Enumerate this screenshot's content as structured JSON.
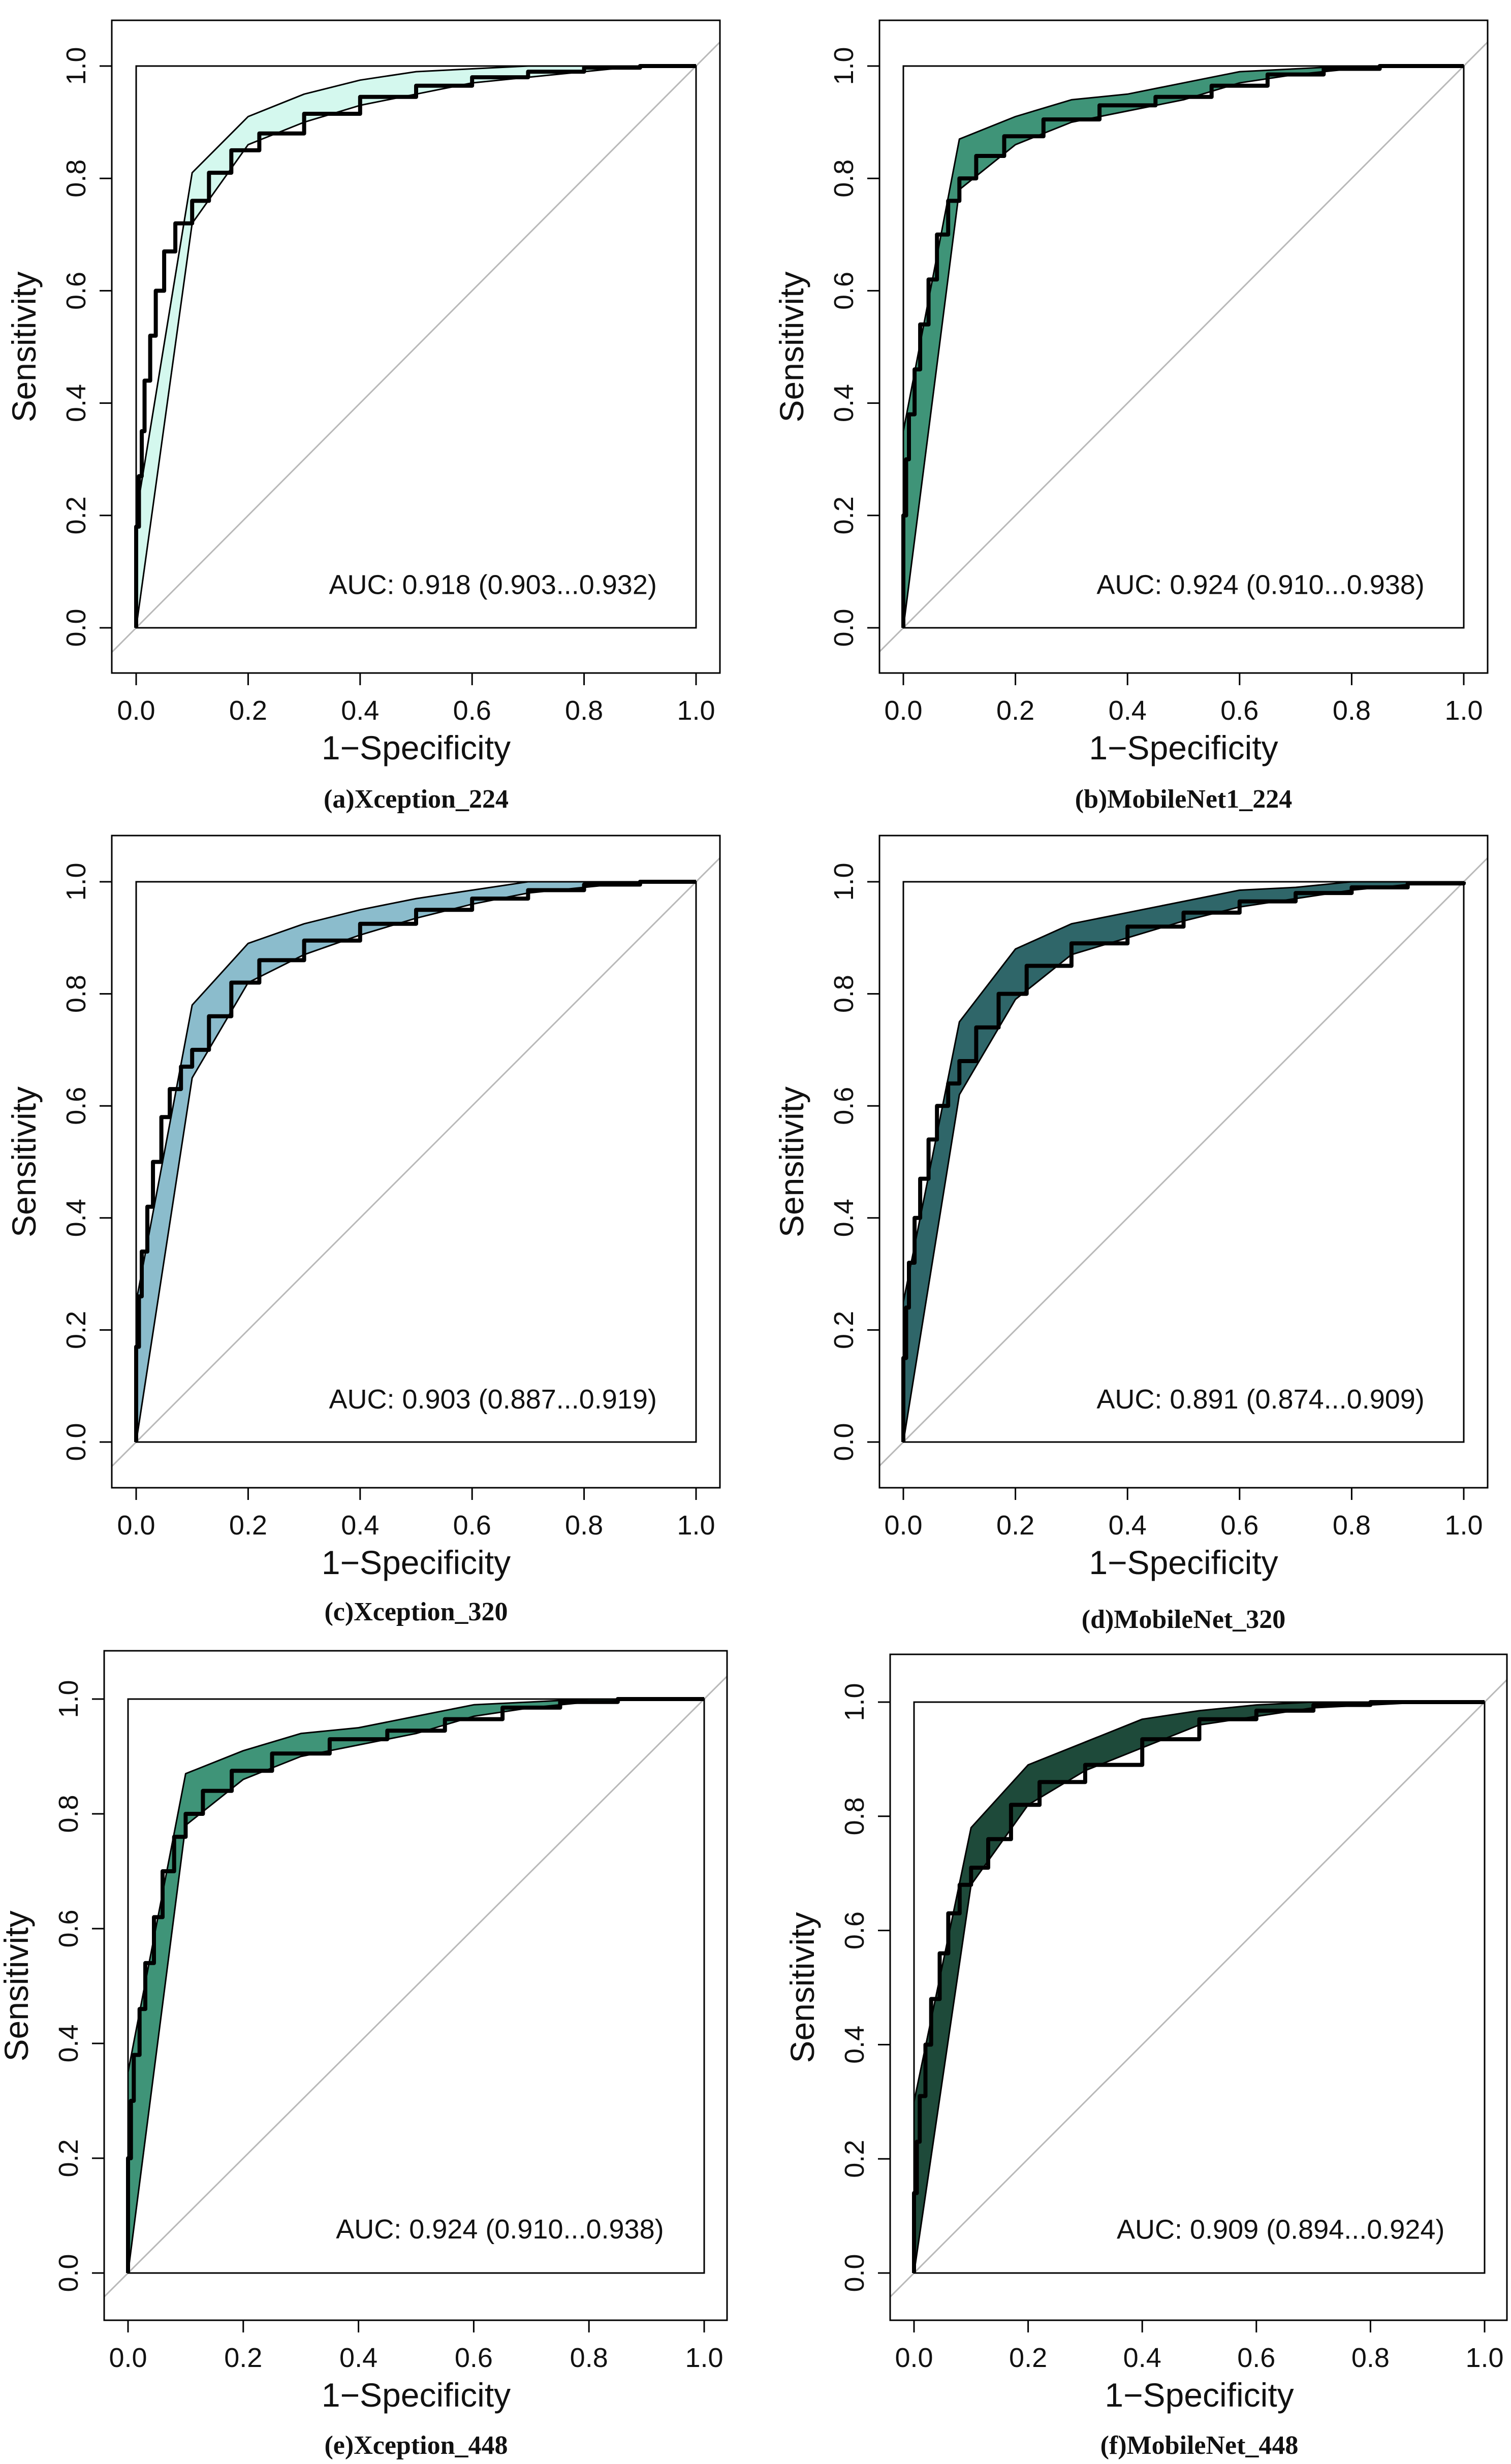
{
  "chart_data": [
    {
      "type": "line",
      "caption": "(a)Xception_224",
      "xlabel": "1−Specificity",
      "ylabel": "Sensitivity",
      "xlim": [
        0,
        1
      ],
      "ylim": [
        0,
        1
      ],
      "xticks": [
        "0.0",
        "0.2",
        "0.4",
        "0.6",
        "0.8",
        "1.0"
      ],
      "yticks": [
        "0.0",
        "0.2",
        "0.4",
        "0.6",
        "0.8",
        "1.0"
      ],
      "annotation": "AUC: 0.918 (0.903...0.932)",
      "band_color": "#d4f8ee",
      "upper": [
        [
          0,
          0.2
        ],
        [
          0.1,
          0.81
        ],
        [
          0.2,
          0.91
        ],
        [
          0.3,
          0.95
        ],
        [
          0.4,
          0.975
        ],
        [
          0.5,
          0.99
        ],
        [
          0.6,
          0.995
        ],
        [
          0.7,
          1
        ],
        [
          1,
          1
        ]
      ],
      "lower": [
        [
          0,
          0
        ],
        [
          0.1,
          0.72
        ],
        [
          0.2,
          0.86
        ],
        [
          0.3,
          0.9
        ],
        [
          0.4,
          0.93
        ],
        [
          0.5,
          0.95
        ],
        [
          0.6,
          0.97
        ],
        [
          0.7,
          0.98
        ],
        [
          0.8,
          0.99
        ],
        [
          0.9,
          1
        ],
        [
          1,
          1
        ]
      ],
      "roc": [
        [
          0,
          0
        ],
        [
          0,
          0.18
        ],
        [
          0.005,
          0.27
        ],
        [
          0.01,
          0.35
        ],
        [
          0.015,
          0.44
        ],
        [
          0.025,
          0.52
        ],
        [
          0.035,
          0.6
        ],
        [
          0.05,
          0.67
        ],
        [
          0.07,
          0.72
        ],
        [
          0.1,
          0.76
        ],
        [
          0.13,
          0.81
        ],
        [
          0.17,
          0.85
        ],
        [
          0.22,
          0.88
        ],
        [
          0.3,
          0.915
        ],
        [
          0.4,
          0.945
        ],
        [
          0.5,
          0.965
        ],
        [
          0.6,
          0.98
        ],
        [
          0.7,
          0.99
        ],
        [
          0.8,
          0.997
        ],
        [
          0.9,
          1
        ],
        [
          1,
          1
        ]
      ]
    },
    {
      "type": "line",
      "caption": "(b)MobileNet1_224",
      "xlabel": "1−Specificity",
      "ylabel": "Sensitivity",
      "xlim": [
        0,
        1
      ],
      "ylim": [
        0,
        1
      ],
      "xticks": [
        "0.0",
        "0.2",
        "0.4",
        "0.6",
        "0.8",
        "1.0"
      ],
      "yticks": [
        "0.0",
        "0.2",
        "0.4",
        "0.6",
        "0.8",
        "1.0"
      ],
      "annotation": "AUC: 0.924 (0.910...0.938)",
      "band_color": "#3f9478",
      "upper": [
        [
          0,
          0.35
        ],
        [
          0.1,
          0.87
        ],
        [
          0.2,
          0.91
        ],
        [
          0.3,
          0.94
        ],
        [
          0.4,
          0.95
        ],
        [
          0.5,
          0.97
        ],
        [
          0.6,
          0.99
        ],
        [
          0.7,
          0.995
        ],
        [
          0.8,
          1
        ],
        [
          1,
          1
        ]
      ],
      "lower": [
        [
          0,
          0
        ],
        [
          0.1,
          0.78
        ],
        [
          0.2,
          0.86
        ],
        [
          0.3,
          0.9
        ],
        [
          0.4,
          0.92
        ],
        [
          0.5,
          0.94
        ],
        [
          0.6,
          0.97
        ],
        [
          0.7,
          0.985
        ],
        [
          0.8,
          0.995
        ],
        [
          0.9,
          1
        ],
        [
          1,
          1
        ]
      ],
      "roc": [
        [
          0,
          0
        ],
        [
          0,
          0.2
        ],
        [
          0.005,
          0.3
        ],
        [
          0.01,
          0.38
        ],
        [
          0.02,
          0.46
        ],
        [
          0.03,
          0.54
        ],
        [
          0.045,
          0.62
        ],
        [
          0.06,
          0.7
        ],
        [
          0.08,
          0.76
        ],
        [
          0.1,
          0.8
        ],
        [
          0.13,
          0.84
        ],
        [
          0.18,
          0.875
        ],
        [
          0.25,
          0.905
        ],
        [
          0.35,
          0.93
        ],
        [
          0.45,
          0.945
        ],
        [
          0.55,
          0.965
        ],
        [
          0.65,
          0.985
        ],
        [
          0.75,
          0.995
        ],
        [
          0.85,
          1
        ],
        [
          1,
          1
        ]
      ]
    },
    {
      "type": "line",
      "caption": "(c)Xception_320",
      "xlabel": "1−Specificity",
      "ylabel": "Sensitivity",
      "xlim": [
        0,
        1
      ],
      "ylim": [
        0,
        1
      ],
      "xticks": [
        "0.0",
        "0.2",
        "0.4",
        "0.6",
        "0.8",
        "1.0"
      ],
      "yticks": [
        "0.0",
        "0.2",
        "0.4",
        "0.6",
        "0.8",
        "1.0"
      ],
      "annotation": "AUC: 0.903 (0.887...0.919)",
      "band_color": "#8bbccc",
      "upper": [
        [
          0,
          0.25
        ],
        [
          0.1,
          0.78
        ],
        [
          0.2,
          0.89
        ],
        [
          0.3,
          0.925
        ],
        [
          0.4,
          0.95
        ],
        [
          0.5,
          0.97
        ],
        [
          0.6,
          0.985
        ],
        [
          0.7,
          1
        ],
        [
          1,
          1
        ]
      ],
      "lower": [
        [
          0,
          0
        ],
        [
          0.1,
          0.65
        ],
        [
          0.2,
          0.82
        ],
        [
          0.3,
          0.87
        ],
        [
          0.4,
          0.905
        ],
        [
          0.5,
          0.935
        ],
        [
          0.6,
          0.96
        ],
        [
          0.7,
          0.98
        ],
        [
          0.8,
          0.99
        ],
        [
          0.9,
          1
        ],
        [
          1,
          1
        ]
      ],
      "roc": [
        [
          0,
          0
        ],
        [
          0,
          0.17
        ],
        [
          0.005,
          0.26
        ],
        [
          0.01,
          0.34
        ],
        [
          0.02,
          0.42
        ],
        [
          0.03,
          0.5
        ],
        [
          0.045,
          0.58
        ],
        [
          0.06,
          0.63
        ],
        [
          0.08,
          0.67
        ],
        [
          0.1,
          0.7
        ],
        [
          0.13,
          0.76
        ],
        [
          0.17,
          0.82
        ],
        [
          0.22,
          0.86
        ],
        [
          0.3,
          0.895
        ],
        [
          0.4,
          0.925
        ],
        [
          0.5,
          0.95
        ],
        [
          0.6,
          0.97
        ],
        [
          0.7,
          0.985
        ],
        [
          0.8,
          0.995
        ],
        [
          0.9,
          1
        ],
        [
          1,
          1
        ]
      ]
    },
    {
      "type": "line",
      "caption": "(d)MobileNet_320",
      "xlabel": "1−Specificity",
      "ylabel": "Sensitivity",
      "xlim": [
        0,
        1
      ],
      "ylim": [
        0,
        1
      ],
      "xticks": [
        "0.0",
        "0.2",
        "0.4",
        "0.6",
        "0.8",
        "1.0"
      ],
      "yticks": [
        "0.0",
        "0.2",
        "0.4",
        "0.6",
        "0.8",
        "1.0"
      ],
      "annotation": "AUC: 0.891 (0.874...0.909)",
      "band_color": "#2f6669",
      "upper": [
        [
          0,
          0.25
        ],
        [
          0.1,
          0.75
        ],
        [
          0.2,
          0.88
        ],
        [
          0.3,
          0.925
        ],
        [
          0.4,
          0.945
        ],
        [
          0.5,
          0.965
        ],
        [
          0.6,
          0.985
        ],
        [
          0.7,
          0.99
        ],
        [
          0.8,
          1
        ],
        [
          1,
          1
        ]
      ],
      "lower": [
        [
          0,
          0
        ],
        [
          0.1,
          0.62
        ],
        [
          0.2,
          0.79
        ],
        [
          0.3,
          0.87
        ],
        [
          0.4,
          0.9
        ],
        [
          0.5,
          0.93
        ],
        [
          0.6,
          0.955
        ],
        [
          0.7,
          0.97
        ],
        [
          0.8,
          0.985
        ],
        [
          0.9,
          0.995
        ],
        [
          1,
          1
        ]
      ],
      "roc": [
        [
          0,
          0
        ],
        [
          0,
          0.15
        ],
        [
          0.005,
          0.24
        ],
        [
          0.01,
          0.32
        ],
        [
          0.02,
          0.4
        ],
        [
          0.03,
          0.47
        ],
        [
          0.045,
          0.54
        ],
        [
          0.06,
          0.6
        ],
        [
          0.08,
          0.64
        ],
        [
          0.1,
          0.68
        ],
        [
          0.13,
          0.74
        ],
        [
          0.17,
          0.8
        ],
        [
          0.22,
          0.85
        ],
        [
          0.3,
          0.89
        ],
        [
          0.4,
          0.92
        ],
        [
          0.5,
          0.945
        ],
        [
          0.6,
          0.965
        ],
        [
          0.7,
          0.98
        ],
        [
          0.8,
          0.99
        ],
        [
          0.9,
          0.997
        ],
        [
          1,
          1
        ]
      ]
    },
    {
      "type": "line",
      "caption": "(e)Xception_448",
      "xlabel": "1−Specificity",
      "ylabel": "Sensitivity",
      "xlim": [
        0,
        1
      ],
      "ylim": [
        0,
        1
      ],
      "xticks": [
        "0.0",
        "0.2",
        "0.4",
        "0.6",
        "0.8",
        "1.0"
      ],
      "yticks": [
        "0.0",
        "0.2",
        "0.4",
        "0.6",
        "0.8",
        "1.0"
      ],
      "annotation": "AUC: 0.924 (0.910...0.938)",
      "band_color": "#3f9478",
      "upper": [
        [
          0,
          0.35
        ],
        [
          0.1,
          0.87
        ],
        [
          0.2,
          0.91
        ],
        [
          0.3,
          0.94
        ],
        [
          0.4,
          0.95
        ],
        [
          0.5,
          0.97
        ],
        [
          0.6,
          0.99
        ],
        [
          0.7,
          0.995
        ],
        [
          0.8,
          1
        ],
        [
          1,
          1
        ]
      ],
      "lower": [
        [
          0,
          0
        ],
        [
          0.1,
          0.78
        ],
        [
          0.2,
          0.86
        ],
        [
          0.3,
          0.9
        ],
        [
          0.4,
          0.92
        ],
        [
          0.5,
          0.94
        ],
        [
          0.6,
          0.97
        ],
        [
          0.7,
          0.985
        ],
        [
          0.8,
          0.995
        ],
        [
          0.9,
          1
        ],
        [
          1,
          1
        ]
      ],
      "roc": [
        [
          0,
          0
        ],
        [
          0,
          0.2
        ],
        [
          0.005,
          0.3
        ],
        [
          0.01,
          0.38
        ],
        [
          0.02,
          0.46
        ],
        [
          0.03,
          0.54
        ],
        [
          0.045,
          0.62
        ],
        [
          0.06,
          0.7
        ],
        [
          0.08,
          0.76
        ],
        [
          0.1,
          0.8
        ],
        [
          0.13,
          0.84
        ],
        [
          0.18,
          0.875
        ],
        [
          0.25,
          0.905
        ],
        [
          0.35,
          0.93
        ],
        [
          0.45,
          0.945
        ],
        [
          0.55,
          0.965
        ],
        [
          0.65,
          0.985
        ],
        [
          0.75,
          0.995
        ],
        [
          0.85,
          1
        ],
        [
          1,
          1
        ]
      ]
    },
    {
      "type": "line",
      "caption": "(f)MobileNet_448",
      "xlabel": "1−Specificity",
      "ylabel": "Sensitivity",
      "xlim": [
        0,
        1
      ],
      "ylim": [
        0,
        1
      ],
      "xticks": [
        "0.0",
        "0.2",
        "0.4",
        "0.6",
        "0.8",
        "1.0"
      ],
      "yticks": [
        "0.0",
        "0.2",
        "0.4",
        "0.6",
        "0.8",
        "1.0"
      ],
      "annotation": "AUC: 0.909 (0.894...0.924)",
      "band_color": "#1e4a3a",
      "upper": [
        [
          0,
          0.3
        ],
        [
          0.1,
          0.78
        ],
        [
          0.2,
          0.89
        ],
        [
          0.3,
          0.93
        ],
        [
          0.4,
          0.97
        ],
        [
          0.5,
          0.985
        ],
        [
          0.6,
          0.995
        ],
        [
          0.7,
          1
        ],
        [
          1,
          1
        ]
      ],
      "lower": [
        [
          0,
          0
        ],
        [
          0.1,
          0.68
        ],
        [
          0.2,
          0.82
        ],
        [
          0.3,
          0.88
        ],
        [
          0.4,
          0.92
        ],
        [
          0.5,
          0.96
        ],
        [
          0.6,
          0.975
        ],
        [
          0.7,
          0.99
        ],
        [
          0.8,
          0.995
        ],
        [
          0.9,
          1
        ],
        [
          1,
          1
        ]
      ],
      "roc": [
        [
          0,
          0
        ],
        [
          0,
          0.14
        ],
        [
          0.005,
          0.23
        ],
        [
          0.01,
          0.31
        ],
        [
          0.02,
          0.4
        ],
        [
          0.03,
          0.48
        ],
        [
          0.045,
          0.56
        ],
        [
          0.06,
          0.63
        ],
        [
          0.08,
          0.68
        ],
        [
          0.1,
          0.71
        ],
        [
          0.13,
          0.76
        ],
        [
          0.17,
          0.82
        ],
        [
          0.22,
          0.86
        ],
        [
          0.3,
          0.89
        ],
        [
          0.4,
          0.935
        ],
        [
          0.5,
          0.97
        ],
        [
          0.6,
          0.985
        ],
        [
          0.7,
          0.995
        ],
        [
          0.8,
          1
        ],
        [
          1,
          1
        ]
      ]
    }
  ]
}
